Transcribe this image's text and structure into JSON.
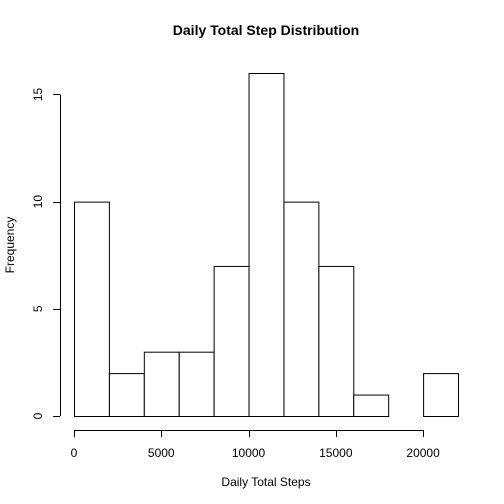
{
  "chart_data": {
    "type": "bar",
    "subtype": "histogram",
    "title": "Daily Total Step Distribution",
    "xlabel": "Daily Total Steps",
    "ylabel": "Frequency",
    "bin_edges": [
      0,
      2000,
      4000,
      6000,
      8000,
      10000,
      12000,
      14000,
      16000,
      18000,
      20000,
      22000
    ],
    "values": [
      10,
      2,
      3,
      3,
      7,
      16,
      10,
      7,
      1,
      0,
      2
    ],
    "xlim": [
      0,
      22000
    ],
    "ylim": [
      0,
      16
    ],
    "x_ticks": [
      0,
      5000,
      10000,
      15000,
      20000
    ],
    "x_tick_labels": [
      "0",
      "5000",
      "10000",
      "15000",
      "20000"
    ],
    "y_ticks": [
      0,
      5,
      10,
      15
    ],
    "y_tick_labels": [
      "0",
      "5",
      "10",
      "15"
    ],
    "grid": false,
    "bar_fill": "#ffffff",
    "bar_stroke": "#000000"
  }
}
